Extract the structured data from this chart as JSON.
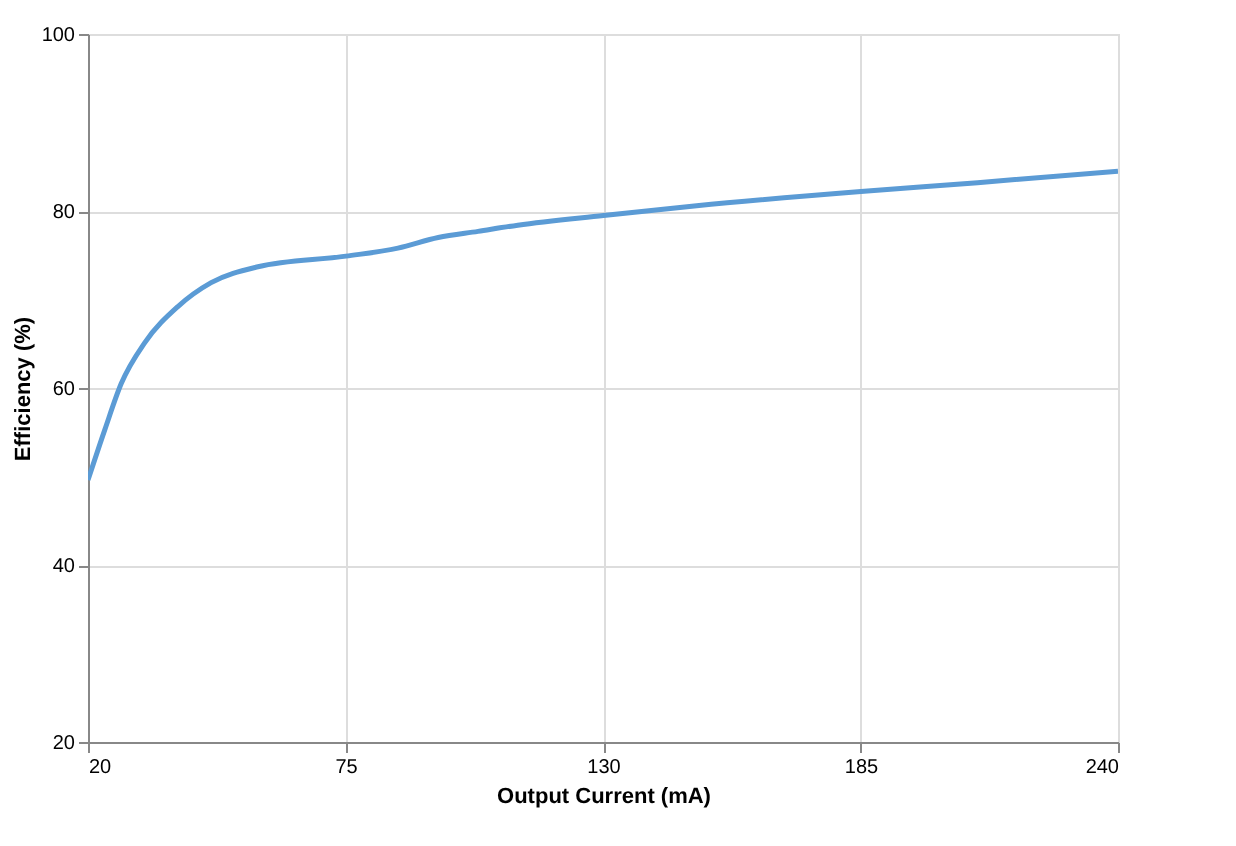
{
  "chart_data": {
    "type": "line",
    "xlabel": "Output Current (mA)",
    "ylabel": "Efficiency (%)",
    "xlim": [
      20,
      240
    ],
    "xticks": [
      20,
      75,
      130,
      185,
      240
    ],
    "ylim": [
      20,
      100
    ],
    "yticks": [
      20,
      40,
      60,
      80,
      100
    ],
    "grid": true,
    "series": [
      {
        "color": "#5b9bd5",
        "x": [
          20,
          23.6,
          27.1,
          32.1,
          39.2,
          46.3,
          56.3,
          75.1,
          86.2,
          94.8,
          103.3,
          111.8,
          130.1,
          150,
          185.1,
          210,
          240
        ],
        "values": [
          49.6,
          55.3,
          60.5,
          65.1,
          69.2,
          71.9,
          73.7,
          74.9,
          75.8,
          77.0,
          77.7,
          78.4,
          79.5,
          80.6,
          82.2,
          83.2,
          84.5
        ]
      }
    ]
  }
}
